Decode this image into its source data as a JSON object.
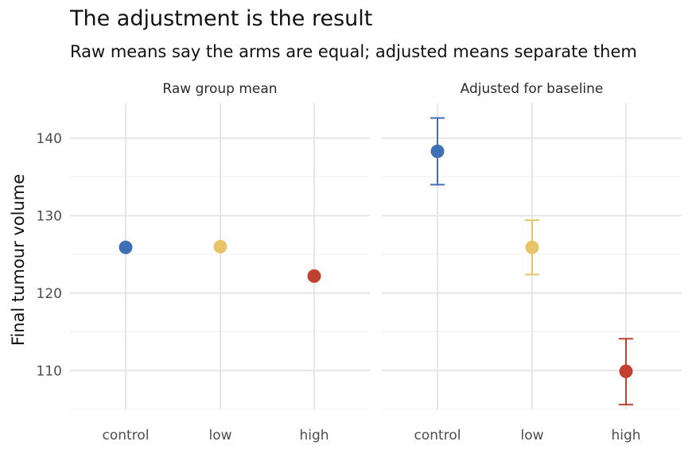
{
  "chart_data": {
    "type": "scatter",
    "title": "The adjustment is the result",
    "subtitle": "Raw means say the arms are equal; adjusted means separate them",
    "ylabel": "Final tumour volume",
    "xlabel": "",
    "ylim": [
      105,
      144.5
    ],
    "yticks": [
      110,
      120,
      130,
      140
    ],
    "categories": [
      "control",
      "low",
      "high"
    ],
    "colors": {
      "control": "#3F6FB5",
      "low": "#E8C468",
      "high": "#C0412F"
    },
    "grid": true,
    "legend": "none",
    "panels": [
      {
        "name": "Raw group mean",
        "points": [
          {
            "x": "control",
            "y": 125.9
          },
          {
            "x": "low",
            "y": 126.0
          },
          {
            "x": "high",
            "y": 122.2
          }
        ]
      },
      {
        "name": "Adjusted for baseline",
        "points": [
          {
            "x": "control",
            "y": 138.3,
            "lower": 134.0,
            "upper": 142.6
          },
          {
            "x": "low",
            "y": 125.9,
            "lower": 122.4,
            "upper": 129.4
          },
          {
            "x": "high",
            "y": 109.9,
            "lower": 105.6,
            "upper": 114.1
          }
        ]
      }
    ]
  }
}
